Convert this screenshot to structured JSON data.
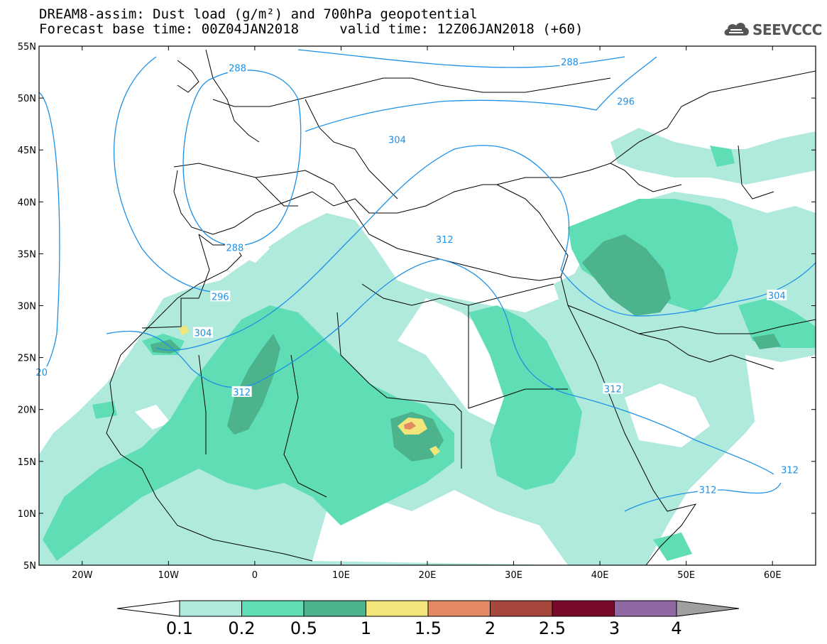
{
  "header": {
    "line1": "DREAM8-assim: Dust load (g/m²) and 700hPa geopotential",
    "line2_left": "Forecast base time: 00Z04JAN2018",
    "line2_right": "valid time: 12Z06JAN2018 (+60)"
  },
  "logo": {
    "text": "SEEVCCC",
    "icon": "cloud-icon"
  },
  "map": {
    "lon_range": [
      -25,
      65
    ],
    "lat_range": [
      5,
      55
    ],
    "lon_ticks": [
      {
        "lon": -20,
        "label": "20W"
      },
      {
        "lon": -10,
        "label": "10W"
      },
      {
        "lon": 0,
        "label": "0"
      },
      {
        "lon": 10,
        "label": "10E"
      },
      {
        "lon": 20,
        "label": "20E"
      },
      {
        "lon": 30,
        "label": "30E"
      },
      {
        "lon": 40,
        "label": "40E"
      },
      {
        "lon": 50,
        "label": "50E"
      },
      {
        "lon": 60,
        "label": "60E"
      }
    ],
    "lat_ticks": [
      {
        "lat": 55,
        "label": "55N"
      },
      {
        "lat": 50,
        "label": "50N"
      },
      {
        "lat": 45,
        "label": "45N"
      },
      {
        "lat": 40,
        "label": "40N"
      },
      {
        "lat": 35,
        "label": "35N"
      },
      {
        "lat": 30,
        "label": "30N"
      },
      {
        "lat": 25,
        "label": "25N"
      },
      {
        "lat": 20,
        "label": "20N"
      },
      {
        "lat": 15,
        "label": "15N"
      },
      {
        "lat": 10,
        "label": "10N"
      },
      {
        "lat": 5,
        "label": "5N"
      }
    ],
    "contour_labels": [
      {
        "text": "288",
        "lon": -2,
        "lat": 52.9
      },
      {
        "text": "288",
        "lon": 36.5,
        "lat": 53.5
      },
      {
        "text": "296",
        "lon": 43,
        "lat": 49.7
      },
      {
        "text": "304",
        "lon": 16.5,
        "lat": 46
      },
      {
        "text": "288",
        "lon": -2.3,
        "lat": 35.6
      },
      {
        "text": "296",
        "lon": -4,
        "lat": 30.9
      },
      {
        "text": "312",
        "lon": 22,
        "lat": 36.4
      },
      {
        "text": "304",
        "lon": 60.5,
        "lat": 31
      },
      {
        "text": "304",
        "lon": -6,
        "lat": 27.4
      },
      {
        "text": "312",
        "lon": -1.5,
        "lat": 21.7
      },
      {
        "text": "312",
        "lon": 41.5,
        "lat": 22
      },
      {
        "text": "312",
        "lon": 62,
        "lat": 14.2
      },
      {
        "text": "312",
        "lon": 52.5,
        "lat": 12.3
      },
      {
        "text": "20",
        "lon": -24.7,
        "lat": 23.6
      }
    ],
    "colors": {
      "contour": "#1E90E6",
      "coast": "#000000",
      "land": "#ffffff"
    }
  },
  "colorbar": {
    "labels": [
      "0.1",
      "0.2",
      "0.5",
      "1",
      "1.5",
      "2",
      "2.5",
      "3",
      "4"
    ],
    "colors": [
      "#AFEADD",
      "#5FDDB4",
      "#4CB38D",
      "#F2E57A",
      "#E48A63",
      "#A7473C",
      "#7B0A2A",
      "#8E69A3",
      "#A0A0A0"
    ]
  }
}
